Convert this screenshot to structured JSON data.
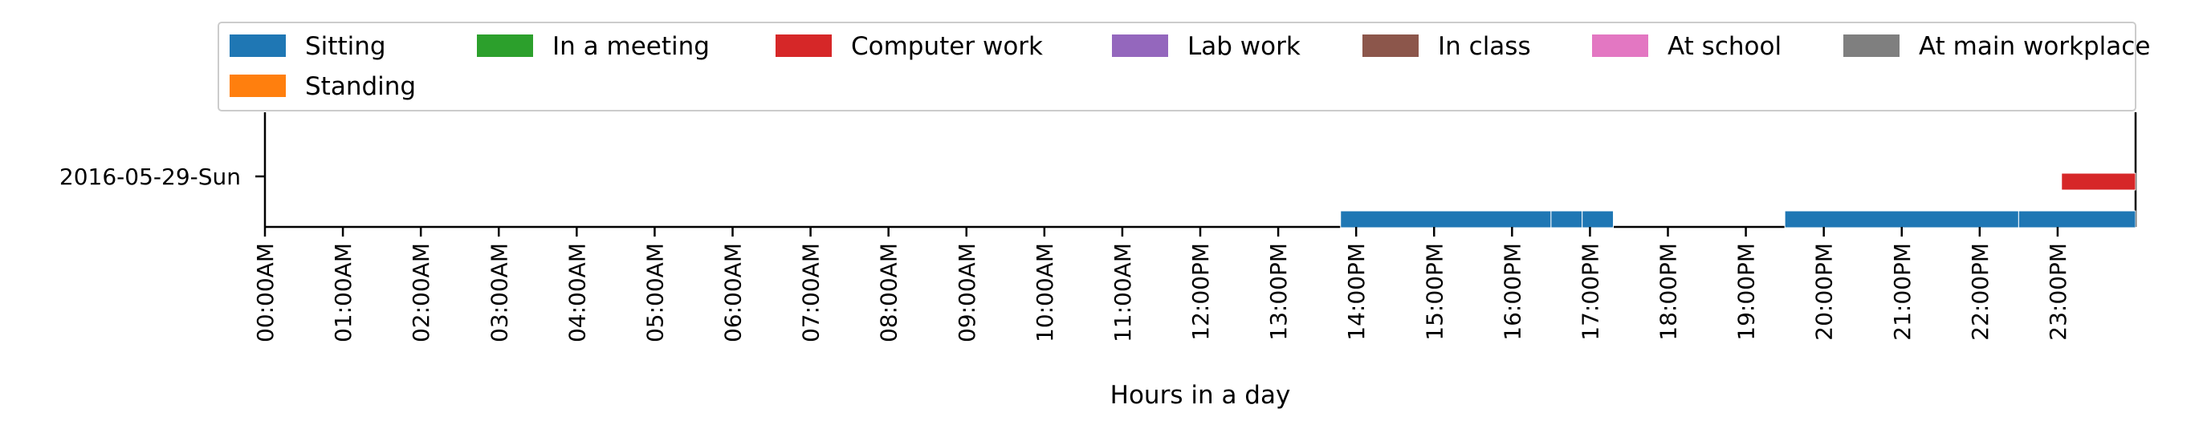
{
  "chart_data": {
    "type": "timeline",
    "xlabel": "Hours in a day",
    "ylabel": "",
    "title": "",
    "x_range_hours": [
      0,
      24
    ],
    "grid": false,
    "legend_placement": "top",
    "row_labels": [
      "2016-05-29-Sun"
    ],
    "x_tick_labels": [
      "00:00AM",
      "01:00AM",
      "02:00AM",
      "03:00AM",
      "04:00AM",
      "05:00AM",
      "06:00AM",
      "07:00AM",
      "08:00AM",
      "09:00AM",
      "10:00AM",
      "11:00AM",
      "12:00PM",
      "13:00PM",
      "14:00PM",
      "15:00PM",
      "16:00PM",
      "17:00PM",
      "18:00PM",
      "19:00PM",
      "20:00PM",
      "21:00PM",
      "22:00PM",
      "23:00PM"
    ],
    "legend": [
      {
        "label": "Sitting",
        "color": "#1f77b4"
      },
      {
        "label": "In a meeting",
        "color": "#2ca02c"
      },
      {
        "label": "Computer work",
        "color": "#d62728"
      },
      {
        "label": "Lab work",
        "color": "#9467bd"
      },
      {
        "label": "In class",
        "color": "#8c564b"
      },
      {
        "label": "At school",
        "color": "#e377c2"
      },
      {
        "label": "At main workplace",
        "color": "#7f7f7f"
      },
      {
        "label": "Standing",
        "color": "#ff7f0e"
      }
    ],
    "series": [
      {
        "name": "Sitting",
        "color": "#1f77b4",
        "intervals": [
          [
            13.8,
            16.5
          ],
          [
            16.5,
            16.9
          ],
          [
            16.9,
            17.3
          ],
          [
            19.5,
            22.5
          ],
          [
            22.5,
            24.0
          ]
        ]
      },
      {
        "name": "Computer work",
        "color": "#d62728",
        "intervals": [
          [
            23.05,
            24.0
          ]
        ]
      }
    ]
  }
}
